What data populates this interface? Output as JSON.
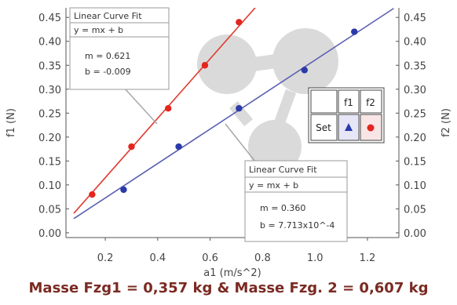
{
  "chart_data": {
    "type": "scatter",
    "xlabel": "a1 (m/s^2)",
    "ylabel_left": "f1 (N)",
    "ylabel_right": "f2 (N)",
    "xlim": [
      0.05,
      1.32
    ],
    "ylim": [
      -0.01,
      0.47
    ],
    "x_ticks": [
      "0.2",
      "0.4",
      "0.6",
      "0.8",
      "1.0",
      "1.2"
    ],
    "x_tick_values": [
      0.2,
      0.4,
      0.6,
      0.8,
      1.0,
      1.2
    ],
    "y_ticks": [
      "0.00",
      "0.05",
      "0.10",
      "0.15",
      "0.20",
      "0.25",
      "0.30",
      "0.35",
      "0.40",
      "0.45"
    ],
    "y_tick_values": [
      0.0,
      0.05,
      0.1,
      0.15,
      0.2,
      0.25,
      0.3,
      0.35,
      0.4,
      0.45
    ],
    "grid": false,
    "series": [
      {
        "key": "f1",
        "color": "#e03a2f",
        "marker_color": "#e3261e",
        "points": [
          [
            0.15,
            0.08
          ],
          [
            0.3,
            0.18
          ],
          [
            0.44,
            0.26
          ],
          [
            0.58,
            0.35
          ],
          [
            0.71,
            0.44
          ]
        ],
        "fit": {
          "m": 0.621,
          "b": -0.009,
          "x_from": 0.08,
          "x_to": 0.8
        }
      },
      {
        "key": "f2",
        "color": "#5a5fb0",
        "marker_color": "#2b3aa8",
        "points": [
          [
            0.27,
            0.09
          ],
          [
            0.48,
            0.18
          ],
          [
            0.71,
            0.26
          ],
          [
            0.96,
            0.34
          ],
          [
            1.15,
            0.42
          ]
        ],
        "fit": {
          "m": 0.36,
          "b": 0.0007713,
          "x_from": 0.08,
          "x_to": 1.3
        }
      }
    ],
    "fit_boxes": [
      {
        "title": "Linear Curve Fit",
        "equation": "y = mx + b",
        "m_text": "m = 0.621",
        "b_text": "b = -0.009"
      },
      {
        "title": "Linear Curve Fit",
        "equation": "y = mx + b",
        "m_text": "m = 0.360",
        "b_text": "b = 7.713x10^-4"
      }
    ],
    "legend": {
      "set_label": "Set",
      "col1": "f1",
      "col2": "f2"
    },
    "caption": "Masse Fzg1 = 0,357 kg & Masse Fzg. 2 = 0,607 kg"
  }
}
